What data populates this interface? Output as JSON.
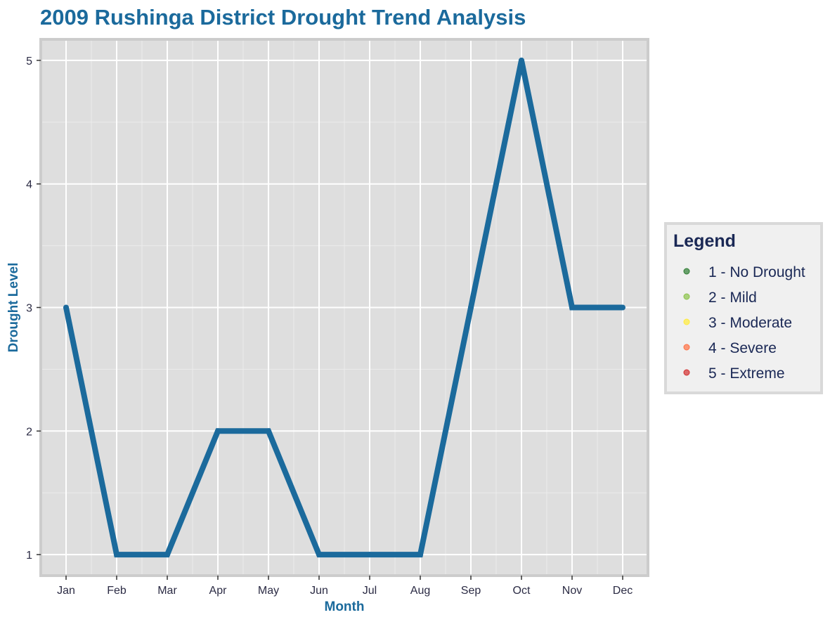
{
  "colors": {
    "title": "#1b6a9c",
    "line": "#1b6a9c",
    "panel_bg": "#dedede",
    "panel_border": "#cccccc",
    "grid_major": "#ffffff",
    "grid_minor": "#ececec",
    "legend_bg": "#f0f0f0",
    "legend_border": "#d9d9d9",
    "legend_text": "#1a2855",
    "tick_text": "#2b2b44"
  },
  "chart_data": {
    "type": "line",
    "title": "2009 Rushinga District Drought Trend Analysis",
    "xlabel": "Month",
    "ylabel": "Drought Level",
    "categories": [
      "Jan",
      "Feb",
      "Mar",
      "Apr",
      "May",
      "Jun",
      "Jul",
      "Aug",
      "Sep",
      "Oct",
      "Nov",
      "Dec"
    ],
    "series": [
      {
        "values": [
          3,
          1,
          1,
          2,
          2,
          1,
          1,
          1,
          3,
          5,
          3,
          3
        ]
      }
    ],
    "ylim": [
      0.83,
      5.17
    ],
    "yticks": [
      1,
      2,
      3,
      4,
      5
    ],
    "grid": true,
    "legend": {
      "title": "Legend",
      "position": "right",
      "items": [
        {
          "label": "1 - No Drought",
          "color": "#2e7d32"
        },
        {
          "label": "2 - Mild",
          "color": "#8bc34a"
        },
        {
          "label": "3 - Moderate",
          "color": "#ffeb3b"
        },
        {
          "label": "4 - Severe",
          "color": "#ff7043"
        },
        {
          "label": "5 - Extreme",
          "color": "#d32f2f"
        }
      ]
    }
  }
}
